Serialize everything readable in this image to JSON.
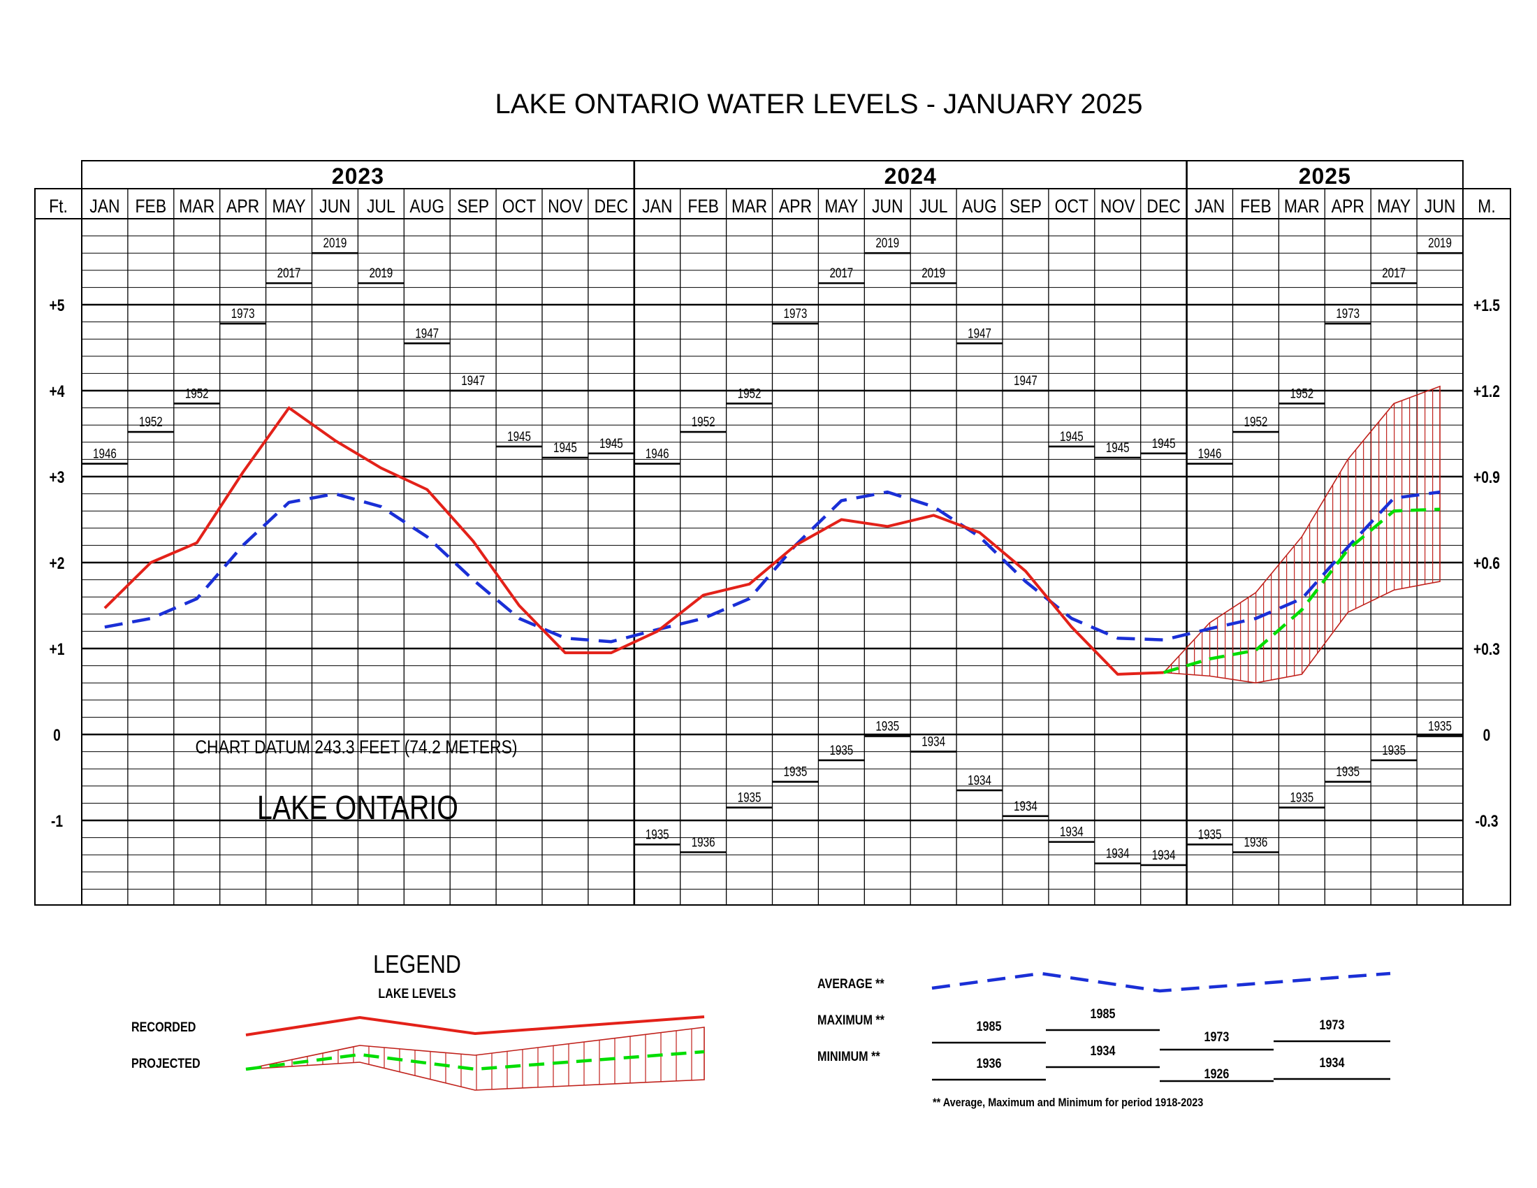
{
  "title": "LAKE ONTARIO WATER LEVELS - JANUARY 2025",
  "colors": {
    "recorded": "#e32119",
    "projected": "#00dd00",
    "average": "#1a2fd6",
    "projection_band": "#c0201a"
  },
  "chart_data": {
    "type": "line",
    "title": "LAKE ONTARIO WATER LEVELS - JANUARY 2025",
    "ylabel_left": "Ft.",
    "ylabel_right": "M.",
    "ylim_ft": [
      -2,
      6
    ],
    "y_ticks_left": [
      {
        "v": 5,
        "t": "+5"
      },
      {
        "v": 4,
        "t": "+4"
      },
      {
        "v": 3,
        "t": "+3"
      },
      {
        "v": 2,
        "t": "+2"
      },
      {
        "v": 1,
        "t": "+1"
      },
      {
        "v": 0,
        "t": "0"
      },
      {
        "v": -1,
        "t": "-1"
      }
    ],
    "y_ticks_right": [
      {
        "v": 5,
        "t": "+1.5"
      },
      {
        "v": 4,
        "t": "+1.2"
      },
      {
        "v": 3,
        "t": "+0.9"
      },
      {
        "v": 2,
        "t": "+0.6"
      },
      {
        "v": 1,
        "t": "+0.3"
      },
      {
        "v": 0,
        "t": "0"
      },
      {
        "v": -1,
        "t": "-0.3"
      }
    ],
    "years": [
      {
        "label": "2023",
        "months": 12
      },
      {
        "label": "2024",
        "months": 12
      },
      {
        "label": "2025",
        "months": 6
      }
    ],
    "months": [
      "JAN",
      "FEB",
      "MAR",
      "APR",
      "MAY",
      "JUN",
      "JUL",
      "AUG",
      "SEP",
      "OCT",
      "NOV",
      "DEC",
      "JAN",
      "FEB",
      "MAR",
      "APR",
      "MAY",
      "JUN",
      "JUL",
      "AUG",
      "SEP",
      "OCT",
      "NOV",
      "DEC",
      "JAN",
      "FEB",
      "MAR",
      "APR",
      "MAY",
      "JUN"
    ],
    "grid": true,
    "series": [
      {
        "key": "recorded",
        "name": "RECORDED",
        "x": [
          0,
          1,
          2,
          3,
          4,
          5,
          6,
          7,
          8,
          9,
          10,
          11,
          12,
          13,
          14,
          15,
          16,
          17,
          18,
          19,
          20,
          21,
          22,
          23
        ],
        "values": [
          1.47,
          2.0,
          2.23,
          3.05,
          3.8,
          3.42,
          3.1,
          2.85,
          2.25,
          1.5,
          0.95,
          0.95,
          1.2,
          1.62,
          1.75,
          2.2,
          2.5,
          2.42,
          2.55,
          2.35,
          1.9,
          1.25,
          0.7,
          0.72
        ]
      },
      {
        "key": "average",
        "name": "AVERAGE",
        "x": [
          0,
          1,
          2,
          3,
          4,
          5,
          6,
          7,
          8,
          9,
          10,
          11,
          12,
          13,
          14,
          15,
          16,
          17,
          18,
          19,
          20,
          21,
          22,
          23,
          24,
          25,
          26,
          27,
          28,
          29
        ],
        "values": [
          1.25,
          1.35,
          1.58,
          2.2,
          2.7,
          2.8,
          2.65,
          2.3,
          1.8,
          1.35,
          1.12,
          1.08,
          1.22,
          1.35,
          1.58,
          2.2,
          2.72,
          2.82,
          2.65,
          2.3,
          1.78,
          1.35,
          1.12,
          1.1,
          1.23,
          1.35,
          1.58,
          2.18,
          2.75,
          2.82
        ]
      },
      {
        "key": "projected",
        "name": "PROJECTED",
        "x": [
          23,
          24,
          25,
          26,
          27,
          28,
          29
        ],
        "values": [
          0.72,
          0.88,
          0.98,
          1.45,
          2.15,
          2.6,
          2.62
        ],
        "band_upper": [
          0.72,
          1.3,
          1.65,
          2.3,
          3.2,
          3.85,
          4.05
        ],
        "band_lower": [
          0.72,
          0.68,
          0.6,
          0.7,
          1.42,
          1.68,
          1.78
        ]
      }
    ],
    "max_labels": [
      {
        "m": 0,
        "v": 3.15,
        "year": "1946"
      },
      {
        "m": 1,
        "v": 3.52,
        "year": "1952"
      },
      {
        "m": 2,
        "v": 3.85,
        "year": "1952"
      },
      {
        "m": 3,
        "v": 4.78,
        "year": "1973"
      },
      {
        "m": 4,
        "v": 5.25,
        "year": "2017"
      },
      {
        "m": 5,
        "v": 5.6,
        "year": "2019"
      },
      {
        "m": 6,
        "v": 5.25,
        "year": "2019"
      },
      {
        "m": 7,
        "v": 4.55,
        "year": "1947"
      },
      {
        "m": 8,
        "v": 4.0,
        "year": "1947"
      },
      {
        "m": 9,
        "v": 3.35,
        "year": "1945"
      },
      {
        "m": 10,
        "v": 3.22,
        "year": "1945"
      },
      {
        "m": 11,
        "v": 3.27,
        "year": "1945"
      },
      {
        "m": 12,
        "v": 3.15,
        "year": "1946"
      },
      {
        "m": 13,
        "v": 3.52,
        "year": "1952"
      },
      {
        "m": 14,
        "v": 3.85,
        "year": "1952"
      },
      {
        "m": 15,
        "v": 4.78,
        "year": "1973"
      },
      {
        "m": 16,
        "v": 5.25,
        "year": "2017"
      },
      {
        "m": 17,
        "v": 5.6,
        "year": "2019"
      },
      {
        "m": 18,
        "v": 5.25,
        "year": "2019"
      },
      {
        "m": 19,
        "v": 4.55,
        "year": "1947"
      },
      {
        "m": 20,
        "v": 4.0,
        "year": "1947"
      },
      {
        "m": 21,
        "v": 3.35,
        "year": "1945"
      },
      {
        "m": 22,
        "v": 3.22,
        "year": "1945"
      },
      {
        "m": 23,
        "v": 3.27,
        "year": "1945"
      },
      {
        "m": 24,
        "v": 3.15,
        "year": "1946"
      },
      {
        "m": 25,
        "v": 3.52,
        "year": "1952"
      },
      {
        "m": 26,
        "v": 3.85,
        "year": "1952"
      },
      {
        "m": 27,
        "v": 4.78,
        "year": "1973"
      },
      {
        "m": 28,
        "v": 5.25,
        "year": "2017"
      },
      {
        "m": 29,
        "v": 5.6,
        "year": "2019"
      }
    ],
    "min_labels": [
      {
        "m": 12,
        "v": -1.28,
        "year": "1935"
      },
      {
        "m": 13,
        "v": -1.37,
        "year": "1936"
      },
      {
        "m": 14,
        "v": -0.85,
        "year": "1935"
      },
      {
        "m": 15,
        "v": -0.55,
        "year": "1935"
      },
      {
        "m": 16,
        "v": -0.3,
        "year": "1935"
      },
      {
        "m": 17,
        "v": -0.02,
        "year": "1935"
      },
      {
        "m": 18,
        "v": -0.2,
        "year": "1934"
      },
      {
        "m": 19,
        "v": -0.65,
        "year": "1934"
      },
      {
        "m": 20,
        "v": -0.95,
        "year": "1934"
      },
      {
        "m": 21,
        "v": -1.25,
        "year": "1934"
      },
      {
        "m": 22,
        "v": -1.5,
        "year": "1934"
      },
      {
        "m": 23,
        "v": -1.52,
        "year": "1934"
      },
      {
        "m": 24,
        "v": -1.28,
        "year": "1935"
      },
      {
        "m": 25,
        "v": -1.37,
        "year": "1936"
      },
      {
        "m": 26,
        "v": -0.85,
        "year": "1935"
      },
      {
        "m": 27,
        "v": -0.55,
        "year": "1935"
      },
      {
        "m": 28,
        "v": -0.3,
        "year": "1935"
      },
      {
        "m": 29,
        "v": -0.02,
        "year": "1935"
      }
    ],
    "annotations": {
      "datum": "CHART DATUM  243.3 FEET (74.2 METERS)",
      "lake": "LAKE ONTARIO"
    }
  },
  "legend": {
    "heading": "LEGEND",
    "subheading": "LAKE LEVELS",
    "recorded_label": "RECORDED",
    "projected_label": "PROJECTED",
    "average_label": "AVERAGE **",
    "maximum_label": "MAXIMUM **",
    "minimum_label": "MINIMUM **",
    "max_years": [
      "1985",
      "1985",
      "1973",
      "1973"
    ],
    "min_years": [
      "1936",
      "1934",
      "1926",
      "1934"
    ],
    "footnote": "** Average, Maximum and Minimum for period 1918-2023"
  }
}
